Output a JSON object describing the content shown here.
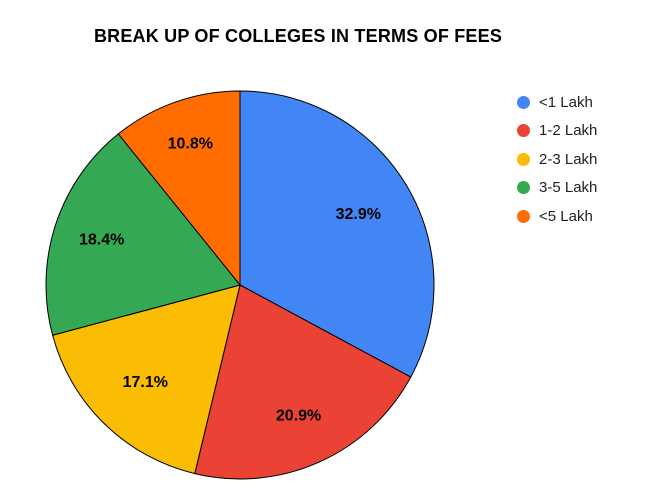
{
  "title": "BREAK UP OF COLLEGES IN TERMS OF FEES",
  "chart_data": {
    "type": "pie",
    "title": "BREAK UP OF COLLEGES IN TERMS OF FEES",
    "unit": "%",
    "direction": "clockwise",
    "start_angle_deg": 0,
    "legend_position": "right",
    "background_color": "#ffffff",
    "slice_border_color": "#000000",
    "slice_label_color": "#000000",
    "legend_text_color": "#222222",
    "slices": [
      {
        "label": "<1 Lakh",
        "value": 32.9,
        "display": "32.9%",
        "color": "#4285f4",
        "label_radius": 0.71
      },
      {
        "label": "1-2 Lakh",
        "value": 20.9,
        "display": "20.9%",
        "color": "#ea4335",
        "label_radius": 0.74
      },
      {
        "label": "2-3 Lakh",
        "value": 17.1,
        "display": "17.1%",
        "color": "#fbbc04",
        "label_radius": 0.7
      },
      {
        "label": "3-5 Lakh",
        "value": 18.4,
        "display": "18.4%",
        "color": "#34a853",
        "label_radius": 0.75
      },
      {
        "label": "<5 Lakh",
        "value": 10.8,
        "display": "10.8%",
        "color": "#ff6d01",
        "label_radius": 0.77
      }
    ]
  }
}
